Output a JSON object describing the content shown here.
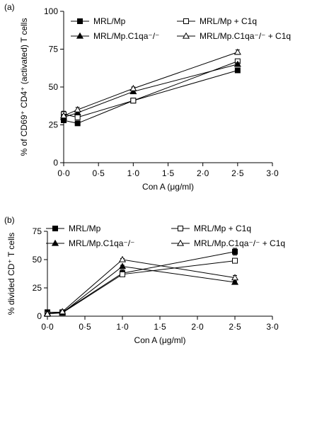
{
  "chart_data": [
    {
      "type": "line",
      "panel_label": "(a)",
      "xlabel": "Con A (μg/ml)",
      "ylabel": "% of CD69⁺ CD4⁺ (activated) T cells",
      "xlim": [
        0,
        3.0
      ],
      "ylim": [
        0,
        100
      ],
      "xticks": [
        0,
        0.5,
        1.0,
        1.5,
        2.0,
        2.5,
        3.0
      ],
      "xtick_labels": [
        "0·0",
        "0·5",
        "1·0",
        "1·5",
        "2·0",
        "2·5",
        "3·0"
      ],
      "yticks": [
        0,
        25,
        50,
        75,
        100
      ],
      "ytick_labels": [
        "0",
        "25",
        "50",
        "75",
        "100"
      ],
      "x": [
        0,
        0.2,
        1.0,
        2.5
      ],
      "series": [
        {
          "name": "MRL/Mp",
          "marker": "square-filled",
          "values": [
            28,
            26,
            41,
            61
          ],
          "err": [
            1,
            1,
            1,
            1
          ]
        },
        {
          "name": "MRL/Mp + C1q",
          "marker": "square-open",
          "values": [
            32,
            30,
            41,
            67
          ],
          "err": [
            2,
            1.5,
            1,
            1.5
          ]
        },
        {
          "name": "MRL/Mp.C1qa⁻/⁻",
          "marker": "triangle-filled",
          "values": [
            30,
            33,
            47,
            65
          ],
          "err": [
            1,
            1,
            1,
            1
          ]
        },
        {
          "name": "MRL/Mp.C1qa⁻/⁻ + C1q",
          "marker": "triangle-open",
          "values": [
            31,
            35,
            49,
            73
          ],
          "err": [
            1,
            1.5,
            1,
            1.5
          ]
        }
      ]
    },
    {
      "type": "line",
      "panel_label": "(b)",
      "xlabel": "Con A (μg/ml)",
      "ylabel": "% divided CD⁺ T cells",
      "xlim": [
        0,
        3.0
      ],
      "ylim": [
        0,
        75
      ],
      "xticks": [
        0,
        0.5,
        1.0,
        1.5,
        2.0,
        2.5,
        3.0
      ],
      "xtick_labels": [
        "0·0",
        "0·5",
        "1·0",
        "1·5",
        "2·0",
        "2·5",
        "3·0"
      ],
      "yticks": [
        0,
        25,
        50,
        75
      ],
      "ytick_labels": [
        "0",
        "25",
        "50",
        "75"
      ],
      "x": [
        0,
        0.2,
        1.0,
        2.5
      ],
      "series": [
        {
          "name": "MRL/Mp",
          "marker": "square-filled",
          "values": [
            3.5,
            3.5,
            38,
            57
          ],
          "err": [
            0.5,
            0.5,
            3,
            3
          ]
        },
        {
          "name": "MRL/Mp + C1q",
          "marker": "square-open",
          "values": [
            2,
            3,
            37,
            49
          ],
          "err": [
            0.5,
            0.5,
            1,
            1
          ]
        },
        {
          "name": "MRL/Mp.C1qa⁻/⁻",
          "marker": "triangle-filled",
          "values": [
            2.5,
            3,
            44,
            30
          ],
          "err": [
            0.5,
            0.5,
            1,
            1
          ]
        },
        {
          "name": "MRL/Mp.C1qa⁻/⁻ + C1q",
          "marker": "triangle-open",
          "values": [
            2,
            4,
            50,
            34
          ],
          "err": [
            0.5,
            0.5,
            1,
            2
          ]
        }
      ]
    }
  ]
}
